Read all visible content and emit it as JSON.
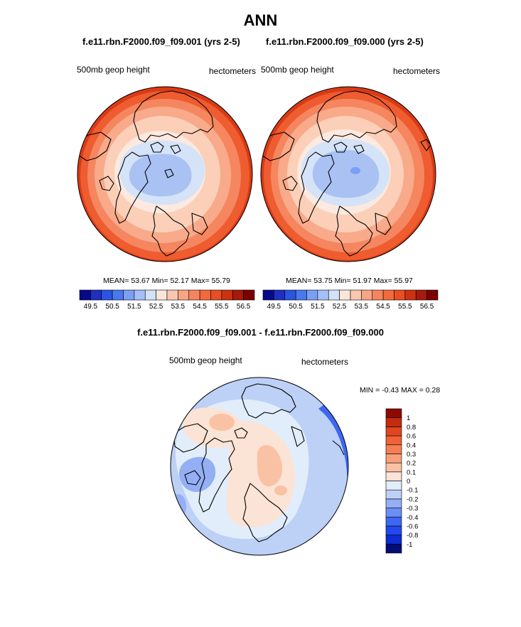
{
  "page": {
    "title": "ANN"
  },
  "panels": {
    "left": {
      "case": "f.e11.rbn.F2000.f09_f09.001 (yrs 2-5)",
      "variable": "500mb geop height",
      "units": "hectometers",
      "stats": {
        "mean": "53.67",
        "min": "52.17",
        "max": "55.79"
      },
      "stats_text": "MEAN=  53.67  Min=  52.17  Max=  55.79"
    },
    "right": {
      "case": "f.e11.rbn.F2000.f09_f09.000 (yrs 2-5)",
      "variable": "500mb geop height",
      "units": "hectometers",
      "stats": {
        "mean": "53.75",
        "min": "51.97",
        "max": "55.97"
      },
      "stats_text": "MEAN=  53.75  Min=  51.97  Max=  55.97"
    },
    "diff": {
      "title": "f.e11.rbn.F2000.f09_f09.001 - f.e11.rbn.F2000.f09_f09.000",
      "variable": "500mb geop height",
      "units": "hectometers",
      "stats": {
        "min": "-0.43",
        "max": "0.28"
      },
      "stats_text": "MIN =  -0.43 MAX =   0.28"
    }
  },
  "colors": {
    "abs_palette": [
      "#08088a",
      "#1f2fc0",
      "#2b54e0",
      "#4a78ee",
      "#7a9ff5",
      "#a5bff7",
      "#d3e2f8",
      "#fbe6dc",
      "#f9c8b0",
      "#f7a585",
      "#f5845f",
      "#f26a3c",
      "#e84e22",
      "#cc3212",
      "#a51a0a",
      "#7a0000"
    ],
    "diff_palette": [
      "#040c78",
      "#0f2bd4",
      "#2248ef",
      "#3e68f2",
      "#6a8ef4",
      "#94aff4",
      "#bdd0f6",
      "#e1edfa",
      "#fbe3d5",
      "#f9c2a5",
      "#f7a07b",
      "#f47f55",
      "#f06237",
      "#e0461f",
      "#c42c0f",
      "#8c0a00"
    ]
  },
  "chart_data": [
    {
      "type": "heatmap",
      "projection": "north-polar-stereographic",
      "title": "f.e11.rbn.F2000.f09_f09.001 (yrs 2-5)",
      "variable": "500mb geop height",
      "units": "hectometers",
      "mean": 53.67,
      "min": 52.17,
      "max": 55.79,
      "colorbar_levels": [
        49.5,
        50,
        50.5,
        51,
        51.5,
        52,
        52.5,
        53,
        53.5,
        54,
        54.5,
        55,
        55.5,
        56,
        56.5
      ],
      "colorbar_tick_labels": [
        "49.5",
        "50.5",
        "51.5",
        "52.5",
        "53.5",
        "54.5",
        "55.5",
        "56.5"
      ]
    },
    {
      "type": "heatmap",
      "projection": "north-polar-stereographic",
      "title": "f.e11.rbn.F2000.f09_f09.000 (yrs 2-5)",
      "variable": "500mb geop height",
      "units": "hectometers",
      "mean": 53.75,
      "min": 51.97,
      "max": 55.97,
      "colorbar_levels": [
        49.5,
        50,
        50.5,
        51,
        51.5,
        52,
        52.5,
        53,
        53.5,
        54,
        54.5,
        55,
        55.5,
        56,
        56.5
      ],
      "colorbar_tick_labels": [
        "49.5",
        "50.5",
        "51.5",
        "52.5",
        "53.5",
        "54.5",
        "55.5",
        "56.5"
      ]
    },
    {
      "type": "heatmap",
      "projection": "north-polar-stereographic",
      "title": "f.e11.rbn.F2000.f09_f09.001 - f.e11.rbn.F2000.f09_f09.000",
      "variable": "500mb geop height",
      "units": "hectometers",
      "min": -0.43,
      "max": 0.28,
      "colorbar_levels": [
        -1,
        -0.8,
        -0.6,
        -0.4,
        -0.3,
        -0.2,
        -0.1,
        0,
        0.1,
        0.2,
        0.3,
        0.4,
        0.6,
        0.8,
        1
      ],
      "colorbar_tick_labels": [
        "-1",
        "-0.8",
        "-0.6",
        "-0.4",
        "-0.3",
        "-0.2",
        "-0.1",
        "0",
        "0.1",
        "0.2",
        "0.3",
        "0.4",
        "0.6",
        "0.8",
        "1"
      ]
    }
  ]
}
